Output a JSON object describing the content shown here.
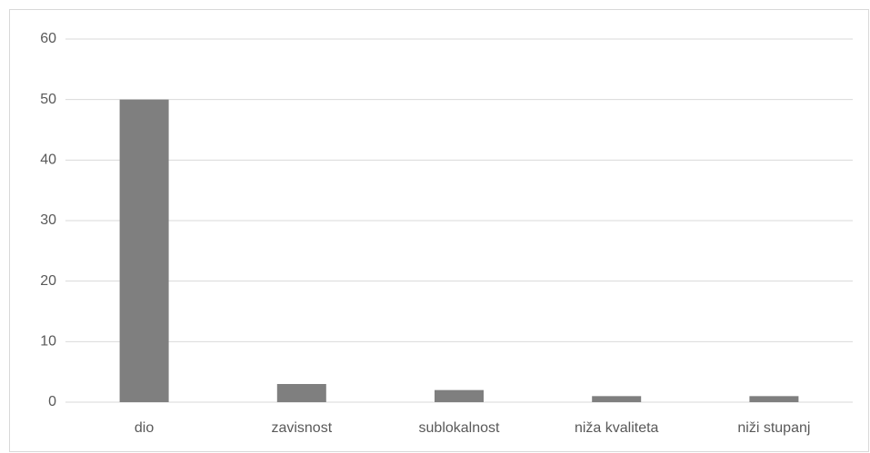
{
  "chart_data": {
    "type": "bar",
    "categories": [
      "dio",
      "zavisnost",
      "sublokalnost",
      "niža kvaliteta",
      "niži stupanj"
    ],
    "values": [
      50,
      3,
      2,
      1,
      1
    ],
    "color": "#7f7f7f",
    "ylim": [
      0,
      60
    ],
    "yticks": [
      0,
      10,
      20,
      30,
      40,
      50,
      60
    ],
    "grid": true
  }
}
